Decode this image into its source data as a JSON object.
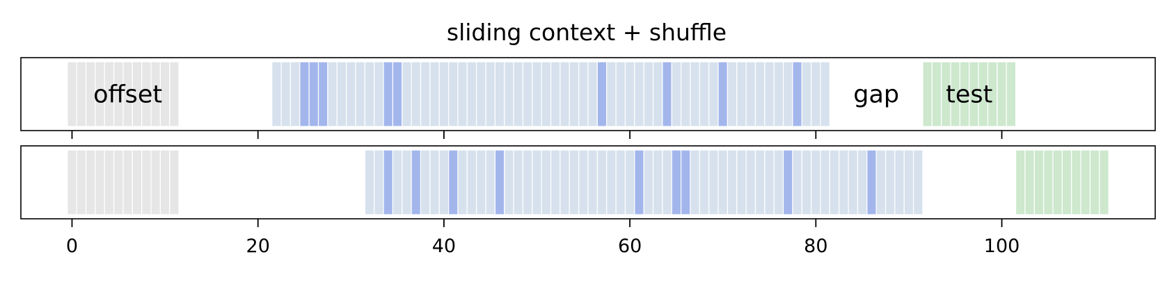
{
  "chart_data": {
    "type": "bar",
    "title": "sliding context + shuffle",
    "xlabel": "",
    "ylabel": "",
    "xlim": [
      -5.5,
      116.5
    ],
    "xticks": [
      0,
      20,
      40,
      60,
      80,
      100
    ],
    "xtick_labels": [
      "0",
      "20",
      "40",
      "60",
      "80",
      "100"
    ],
    "grid": false,
    "colors": {
      "offset": "#e6e6e6",
      "context": "#d6e1ed",
      "highlight": "#a3b6ec",
      "test": "#cde8cd",
      "frame": "#000000"
    },
    "panels": [
      {
        "offset_cells": [
          0,
          1,
          2,
          3,
          4,
          5,
          6,
          7,
          8,
          9,
          10,
          11
        ],
        "context_cells": [
          22,
          23,
          24,
          25,
          26,
          27,
          28,
          29,
          30,
          31,
          32,
          33,
          34,
          35,
          36,
          37,
          38,
          39,
          40,
          41,
          42,
          43,
          44,
          45,
          46,
          47,
          48,
          49,
          50,
          51,
          52,
          53,
          54,
          55,
          56,
          57,
          58,
          59,
          60,
          61,
          62,
          63,
          64,
          65,
          66,
          67,
          68,
          69,
          70,
          71,
          72,
          73,
          74,
          75,
          76,
          77,
          78,
          79,
          80,
          81
        ],
        "highlighted_cells": [
          25,
          26,
          27,
          34,
          35,
          57,
          64,
          70,
          78
        ],
        "test_cells": [
          92,
          93,
          94,
          95,
          96,
          97,
          98,
          99,
          100,
          101
        ],
        "labels": [
          {
            "text": "offset",
            "x": 6
          },
          {
            "text": "gap",
            "x": 86.5
          },
          {
            "text": "test",
            "x": 96.5
          }
        ],
        "show_tick_labels": false
      },
      {
        "offset_cells": [
          0,
          1,
          2,
          3,
          4,
          5,
          6,
          7,
          8,
          9,
          10,
          11
        ],
        "context_cells": [
          32,
          33,
          34,
          35,
          36,
          37,
          38,
          39,
          40,
          41,
          42,
          43,
          44,
          45,
          46,
          47,
          48,
          49,
          50,
          51,
          52,
          53,
          54,
          55,
          56,
          57,
          58,
          59,
          60,
          61,
          62,
          63,
          64,
          65,
          66,
          67,
          68,
          69,
          70,
          71,
          72,
          73,
          74,
          75,
          76,
          77,
          78,
          79,
          80,
          81,
          82,
          83,
          84,
          85,
          86,
          87,
          88,
          89,
          90,
          91
        ],
        "highlighted_cells": [
          34,
          37,
          41,
          46,
          61,
          65,
          66,
          77,
          86
        ],
        "test_cells": [
          102,
          103,
          104,
          105,
          106,
          107,
          108,
          109,
          110,
          111
        ],
        "labels": [],
        "show_tick_labels": true
      }
    ]
  }
}
